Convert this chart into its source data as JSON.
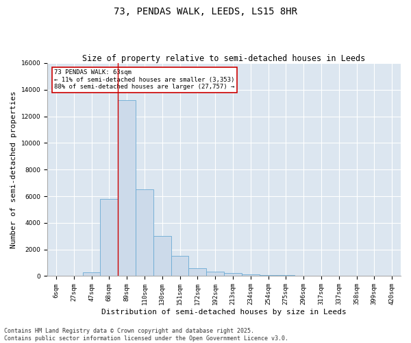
{
  "title": "73, PENDAS WALK, LEEDS, LS15 8HR",
  "subtitle": "Size of property relative to semi-detached houses in Leeds",
  "xlabel": "Distribution of semi-detached houses by size in Leeds",
  "ylabel": "Number of semi-detached properties",
  "categories": [
    "6sqm",
    "27sqm",
    "47sqm",
    "68sqm",
    "89sqm",
    "110sqm",
    "130sqm",
    "151sqm",
    "172sqm",
    "192sqm",
    "213sqm",
    "234sqm",
    "254sqm",
    "275sqm",
    "296sqm",
    "317sqm",
    "337sqm",
    "358sqm",
    "399sqm",
    "420sqm"
  ],
  "values": [
    0,
    0,
    300,
    5800,
    13200,
    6500,
    3000,
    1500,
    600,
    350,
    250,
    150,
    100,
    80,
    50,
    30,
    10,
    5,
    2,
    0
  ],
  "bar_color": "#ccdaea",
  "bar_edge_color": "#6aaad4",
  "vline_x": 3.5,
  "vline_color": "#cc0000",
  "annotation_text": "73 PENDAS WALK: 63sqm\n← 11% of semi-detached houses are smaller (3,353)\n88% of semi-detached houses are larger (27,757) →",
  "annotation_box_color": "#cc0000",
  "ylim": [
    0,
    16000
  ],
  "yticks": [
    0,
    2000,
    4000,
    6000,
    8000,
    10000,
    12000,
    14000,
    16000
  ],
  "background_color": "#dce6f0",
  "footer_text": "Contains HM Land Registry data © Crown copyright and database right 2025.\nContains public sector information licensed under the Open Government Licence v3.0.",
  "title_fontsize": 10,
  "subtitle_fontsize": 8.5,
  "tick_fontsize": 6.5,
  "label_fontsize": 8,
  "annotation_fontsize": 6.5,
  "footer_fontsize": 6
}
